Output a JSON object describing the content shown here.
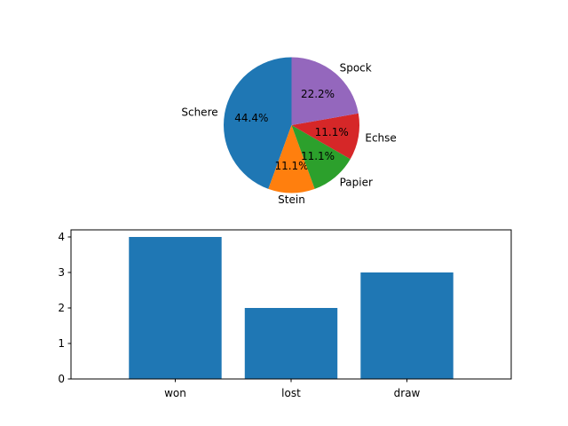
{
  "chart_data": [
    {
      "type": "pie",
      "categories": [
        "Schere",
        "Stein",
        "Papier",
        "Echse",
        "Spock"
      ],
      "values": [
        4,
        1,
        1,
        1,
        2
      ],
      "percent_labels": [
        "44.4%",
        "11.1%",
        "11.1%",
        "11.1%",
        "22.2%"
      ],
      "colors": [
        "#1f77b4",
        "#ff7f0e",
        "#2ca02c",
        "#d62728",
        "#9467bd"
      ],
      "start_angle_deg": 90,
      "direction": "counterclockwise",
      "title": ""
    },
    {
      "type": "bar",
      "categories": [
        "won",
        "lost",
        "draw"
      ],
      "values": [
        4,
        2,
        3
      ],
      "ylim": [
        0,
        4.2
      ],
      "yticks": [
        "0",
        "1",
        "2",
        "3",
        "4"
      ],
      "color": "#1f77b4",
      "title": "",
      "xlabel": "",
      "ylabel": "",
      "grid": false
    }
  ]
}
